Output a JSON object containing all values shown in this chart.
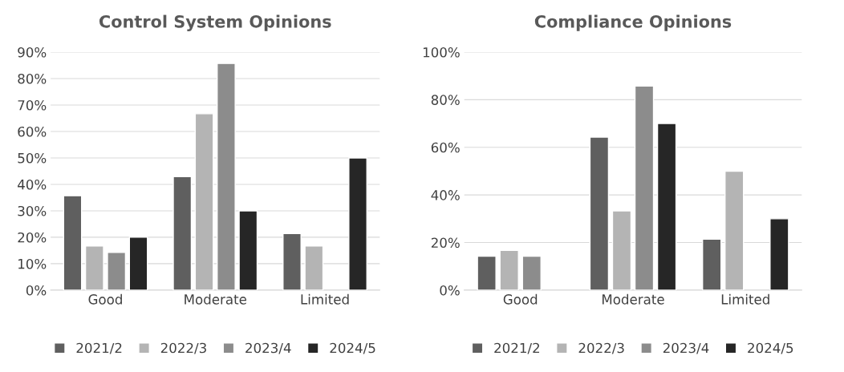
{
  "chart_data": [
    {
      "type": "bar",
      "title": "Control System Opinions",
      "categories": [
        "Good",
        "Moderate",
        "Limited"
      ],
      "series": [
        {
          "name": "2021/2",
          "color": "#5f5f5f",
          "values": [
            35.7,
            42.9,
            21.4
          ]
        },
        {
          "name": "2022/3",
          "color": "#b4b4b4",
          "values": [
            16.7,
            66.7,
            16.7
          ]
        },
        {
          "name": "2023/4",
          "color": "#8c8c8c",
          "values": [
            14.3,
            85.7,
            null
          ]
        },
        {
          "name": "2024/5",
          "color": "#262626",
          "values": [
            20,
            30,
            50
          ]
        }
      ],
      "ylim": [
        0,
        90
      ],
      "yticks": [
        {
          "value": 0,
          "label": "0%"
        },
        {
          "value": 10,
          "label": "10%"
        },
        {
          "value": 20,
          "label": "20%"
        },
        {
          "value": 30,
          "label": "30%"
        },
        {
          "value": 40,
          "label": "40%"
        },
        {
          "value": 50,
          "label": "50%"
        },
        {
          "value": 60,
          "label": "60%"
        },
        {
          "value": 70,
          "label": "70%"
        },
        {
          "value": 80,
          "label": "80%"
        },
        {
          "value": 90,
          "label": "90%"
        }
      ],
      "grid": "y",
      "legend": "bottom"
    },
    {
      "type": "bar",
      "title": "Compliance Opinions",
      "categories": [
        "Good",
        "Moderate",
        "Limited"
      ],
      "series": [
        {
          "name": "2021/2",
          "color": "#5f5f5f",
          "values": [
            14.3,
            64.3,
            21.4
          ]
        },
        {
          "name": "2022/3",
          "color": "#b4b4b4",
          "values": [
            16.7,
            33.3,
            50
          ]
        },
        {
          "name": "2023/4",
          "color": "#8c8c8c",
          "values": [
            14.3,
            85.7,
            null
          ]
        },
        {
          "name": "2024/5",
          "color": "#262626",
          "values": [
            null,
            70,
            30
          ]
        }
      ],
      "ylim": [
        0,
        100
      ],
      "yticks": [
        {
          "value": 0,
          "label": "0%"
        },
        {
          "value": 20,
          "label": "20%"
        },
        {
          "value": 40,
          "label": "40%"
        },
        {
          "value": 60,
          "label": "60%"
        },
        {
          "value": 80,
          "label": "80%"
        },
        {
          "value": 100,
          "label": "100%"
        }
      ],
      "grid": "y",
      "legend": "bottom"
    }
  ]
}
